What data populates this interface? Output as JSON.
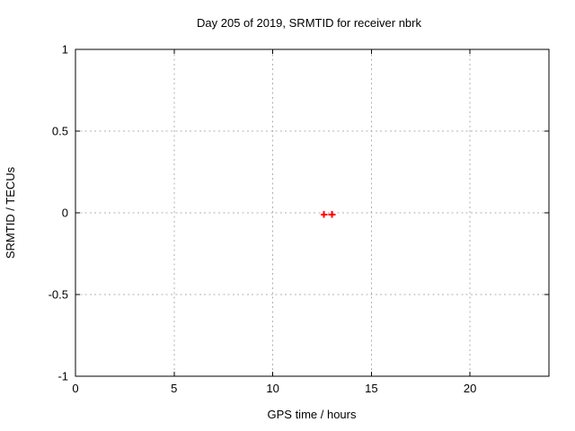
{
  "chart_data": {
    "type": "scatter",
    "title": "Day 205 of 2019, SRMTID for receiver nbrk",
    "xlabel": "GPS time / hours",
    "ylabel": "SRMTID / TECUs",
    "xlim": [
      0,
      24
    ],
    "ylim": [
      -1,
      1
    ],
    "xticks": [
      0,
      5,
      10,
      15,
      20
    ],
    "xtick_labels": [
      "0",
      "5",
      "10",
      "15",
      "20"
    ],
    "yticks": [
      -1,
      -0.5,
      0,
      0.5,
      1
    ],
    "ytick_labels": [
      "-1",
      "-0.5",
      "0",
      "0.5",
      "1"
    ],
    "grid": true,
    "legend": "none",
    "series": [
      {
        "name": "SRMTID",
        "marker": "plus",
        "color": "#ff0000",
        "points": [
          [
            12.6,
            -0.01
          ],
          [
            13.0,
            -0.01
          ]
        ]
      }
    ],
    "colors": {
      "background": "#ffffff",
      "border": "#000000",
      "grid": "#b0b0b0",
      "text": "#000000"
    }
  }
}
